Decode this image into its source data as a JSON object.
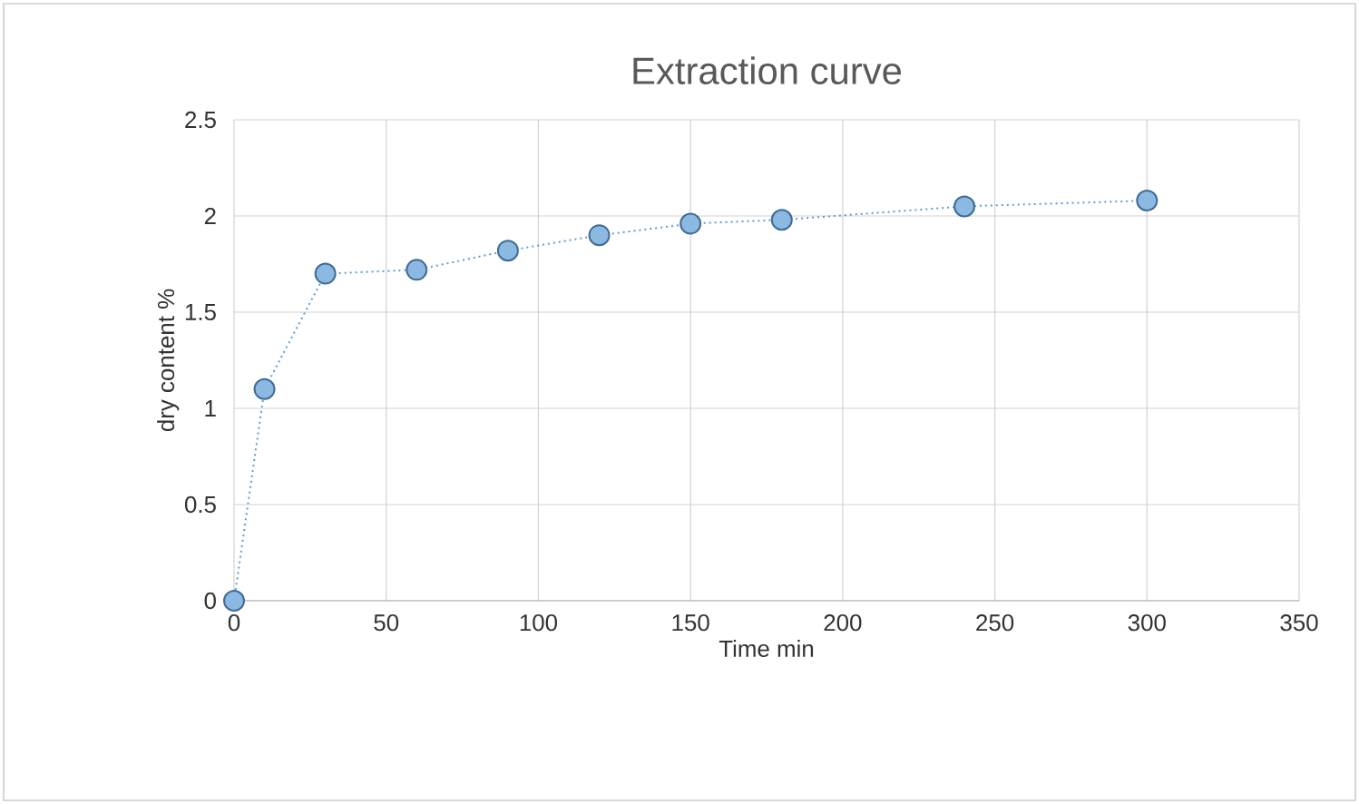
{
  "chart_data": {
    "type": "line",
    "title": "Extraction curve",
    "xlabel": "Time min",
    "ylabel": "dry content %",
    "x": [
      0,
      10,
      30,
      60,
      90,
      120,
      150,
      180,
      240,
      300
    ],
    "series": [
      {
        "color": "#5b9bd5",
        "values": [
          0,
          1.1,
          1.7,
          1.72,
          1.82,
          1.9,
          1.96,
          1.98,
          2.05,
          2.08
        ]
      }
    ],
    "xlim": [
      0,
      350
    ],
    "ylim": [
      0,
      2.5
    ],
    "xticks": [
      0,
      50,
      100,
      150,
      200,
      250,
      300,
      350
    ],
    "yticks": [
      0,
      0.5,
      1,
      1.5,
      2,
      2.5
    ],
    "grid": true,
    "marker": "circle",
    "line_style": "dotted"
  }
}
